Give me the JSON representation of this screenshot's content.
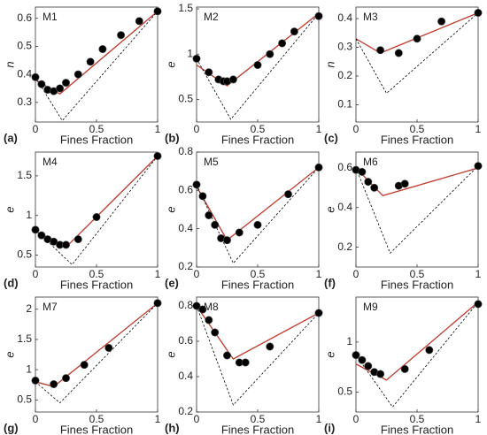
{
  "chart_data": [
    {
      "type": "scatter",
      "title": "M1",
      "panel_label": "(a)",
      "x_label": "Fines Fraction",
      "y_label": "n",
      "xlim": [
        0,
        1
      ],
      "xticks": [
        0,
        0.5,
        1
      ],
      "ylim": [
        0.23,
        0.64
      ],
      "yticks": [
        0.3,
        0.4,
        0.5,
        0.6
      ],
      "series": [
        {
          "kind": "points",
          "color": "#000000",
          "x": [
            0,
            0.05,
            0.1,
            0.15,
            0.2,
            0.25,
            0.35,
            0.45,
            0.55,
            0.7,
            0.85,
            1
          ],
          "values": [
            0.39,
            0.365,
            0.345,
            0.34,
            0.35,
            0.37,
            0.4,
            0.445,
            0.49,
            0.54,
            0.59,
            0.625
          ]
        },
        {
          "kind": "line",
          "color": "#c0392b",
          "x": [
            0,
            0.2,
            1
          ],
          "values": [
            0.38,
            0.33,
            0.625
          ]
        },
        {
          "kind": "dashed",
          "color": "#000000",
          "x": [
            0,
            0.22,
            1
          ],
          "values": [
            0.39,
            0.235,
            0.625
          ]
        }
      ]
    },
    {
      "type": "scatter",
      "title": "M2",
      "panel_label": "(b)",
      "x_label": "Fines Fraction",
      "y_label": "e",
      "xlim": [
        0,
        1
      ],
      "xticks": [
        0,
        0.5,
        1
      ],
      "ylim": [
        0.25,
        1.52
      ],
      "yticks": [
        0.5,
        1,
        1.5
      ],
      "series": [
        {
          "kind": "points",
          "color": "#000000",
          "x": [
            0,
            0.1,
            0.18,
            0.22,
            0.25,
            0.3,
            0.5,
            0.6,
            0.7,
            0.8,
            1
          ],
          "values": [
            0.95,
            0.8,
            0.72,
            0.7,
            0.7,
            0.72,
            0.88,
            1.0,
            1.12,
            1.25,
            1.42
          ]
        },
        {
          "kind": "line",
          "color": "#c0392b",
          "x": [
            0,
            0.25,
            1
          ],
          "values": [
            0.88,
            0.65,
            1.45
          ]
        },
        {
          "kind": "dashed",
          "color": "#000000",
          "x": [
            0,
            0.28,
            1
          ],
          "values": [
            0.95,
            0.28,
            1.45
          ]
        }
      ]
    },
    {
      "type": "scatter",
      "title": "M3",
      "panel_label": "(c)",
      "x_label": "Fines Fraction",
      "y_label": "n",
      "xlim": [
        0,
        1
      ],
      "xticks": [
        0,
        0.5,
        1
      ],
      "ylim": [
        0.04,
        0.44
      ],
      "yticks": [
        0.1,
        0.2,
        0.3,
        0.4
      ],
      "series": [
        {
          "kind": "points",
          "color": "#000000",
          "x": [
            0.2,
            0.35,
            0.5,
            0.7,
            1
          ],
          "values": [
            0.29,
            0.28,
            0.33,
            0.39,
            0.42
          ]
        },
        {
          "kind": "line",
          "color": "#c0392b",
          "x": [
            0,
            0.2,
            1
          ],
          "values": [
            0.33,
            0.28,
            0.42
          ]
        },
        {
          "kind": "dashed",
          "color": "#000000",
          "x": [
            0,
            0.25,
            1
          ],
          "values": [
            0.33,
            0.14,
            0.42
          ]
        }
      ]
    },
    {
      "type": "scatter",
      "title": "M4",
      "panel_label": "(d)",
      "x_label": "Fines Fraction",
      "y_label": "e",
      "xlim": [
        0,
        1
      ],
      "xticks": [
        0,
        0.5,
        1
      ],
      "ylim": [
        0.35,
        1.8
      ],
      "yticks": [
        0.5,
        1,
        1.5
      ],
      "series": [
        {
          "kind": "points",
          "color": "#000000",
          "x": [
            0,
            0.05,
            0.1,
            0.15,
            0.2,
            0.25,
            0.35,
            0.5,
            1
          ],
          "values": [
            0.82,
            0.75,
            0.7,
            0.67,
            0.63,
            0.63,
            0.7,
            0.98,
            1.75
          ]
        },
        {
          "kind": "line",
          "color": "#c0392b",
          "x": [
            0,
            0.25,
            1
          ],
          "values": [
            0.8,
            0.6,
            1.75
          ]
        },
        {
          "kind": "dashed",
          "color": "#000000",
          "x": [
            0,
            0.3,
            1
          ],
          "values": [
            0.82,
            0.38,
            1.75
          ]
        }
      ]
    },
    {
      "type": "scatter",
      "title": "M5",
      "panel_label": "(e)",
      "x_label": "Fines Fraction",
      "y_label": "e",
      "xlim": [
        0,
        1
      ],
      "xticks": [
        0,
        0.5,
        1
      ],
      "ylim": [
        0.2,
        0.8
      ],
      "yticks": [
        0.2,
        0.4,
        0.6,
        0.8
      ],
      "series": [
        {
          "kind": "points",
          "color": "#000000",
          "x": [
            0,
            0.05,
            0.1,
            0.15,
            0.2,
            0.25,
            0.35,
            0.5,
            0.75,
            1
          ],
          "values": [
            0.63,
            0.57,
            0.47,
            0.42,
            0.35,
            0.34,
            0.38,
            0.42,
            0.58,
            0.72
          ]
        },
        {
          "kind": "line",
          "color": "#c0392b",
          "x": [
            0,
            0.25,
            1
          ],
          "values": [
            0.62,
            0.34,
            0.72
          ]
        },
        {
          "kind": "dashed",
          "color": "#000000",
          "x": [
            0,
            0.3,
            1
          ],
          "values": [
            0.63,
            0.22,
            0.72
          ]
        }
      ]
    },
    {
      "type": "scatter",
      "title": "M6",
      "panel_label": "(f)",
      "x_label": "Fines Fraction",
      "y_label": "e",
      "xlim": [
        0,
        1
      ],
      "xticks": [
        0,
        0.5,
        1
      ],
      "ylim": [
        0.1,
        0.68
      ],
      "yticks": [
        0.2,
        0.4,
        0.6
      ],
      "series": [
        {
          "kind": "points",
          "color": "#000000",
          "x": [
            0,
            0.05,
            0.1,
            0.15,
            0.35,
            0.4,
            1
          ],
          "values": [
            0.59,
            0.58,
            0.53,
            0.5,
            0.51,
            0.52,
            0.61
          ]
        },
        {
          "kind": "line",
          "color": "#c0392b",
          "x": [
            0,
            0.22,
            1
          ],
          "values": [
            0.6,
            0.46,
            0.6
          ]
        },
        {
          "kind": "dashed",
          "color": "#000000",
          "x": [
            0,
            0.28,
            1
          ],
          "values": [
            0.6,
            0.17,
            0.61
          ]
        }
      ]
    },
    {
      "type": "scatter",
      "title": "M7",
      "panel_label": "(g)",
      "x_label": "Fines Fraction",
      "y_label": "e",
      "xlim": [
        0,
        1
      ],
      "xticks": [
        0,
        0.5,
        1
      ],
      "ylim": [
        0.3,
        2.2
      ],
      "yticks": [
        0.5,
        1,
        1.5,
        2
      ],
      "series": [
        {
          "kind": "points",
          "color": "#000000",
          "x": [
            0,
            0.15,
            0.25,
            0.4,
            0.6,
            1
          ],
          "values": [
            0.82,
            0.76,
            0.86,
            1.08,
            1.36,
            2.1
          ]
        },
        {
          "kind": "line",
          "color": "#c0392b",
          "x": [
            0,
            0.15,
            1
          ],
          "values": [
            0.8,
            0.72,
            2.1
          ]
        },
        {
          "kind": "dashed",
          "color": "#000000",
          "x": [
            0,
            0.2,
            1
          ],
          "values": [
            0.8,
            0.45,
            2.1
          ]
        }
      ]
    },
    {
      "type": "scatter",
      "title": "M8",
      "panel_label": "(h)",
      "x_label": "Fines Fraction",
      "y_label": "e",
      "xlim": [
        0,
        1
      ],
      "xticks": [
        0,
        0.5,
        1
      ],
      "ylim": [
        0.2,
        0.85
      ],
      "yticks": [
        0.2,
        0.4,
        0.6,
        0.8
      ],
      "series": [
        {
          "kind": "points",
          "color": "#000000",
          "x": [
            0,
            0.05,
            0.1,
            0.15,
            0.25,
            0.35,
            0.4,
            0.6,
            1
          ],
          "values": [
            0.8,
            0.78,
            0.72,
            0.65,
            0.52,
            0.48,
            0.48,
            0.57,
            0.76
          ]
        },
        {
          "kind": "line",
          "color": "#c0392b",
          "x": [
            0,
            0.3,
            1
          ],
          "values": [
            0.8,
            0.5,
            0.76
          ]
        },
        {
          "kind": "dashed",
          "color": "#000000",
          "x": [
            0,
            0.3,
            1
          ],
          "values": [
            0.8,
            0.24,
            0.76
          ]
        }
      ]
    },
    {
      "type": "scatter",
      "title": "M9",
      "panel_label": "(i)",
      "x_label": "Fines Fraction",
      "y_label": "e",
      "xlim": [
        0,
        1
      ],
      "xticks": [
        0,
        0.5,
        1
      ],
      "ylim": [
        0.3,
        1.45
      ],
      "yticks": [
        0.5,
        1
      ],
      "series": [
        {
          "kind": "points",
          "color": "#000000",
          "x": [
            0,
            0.05,
            0.1,
            0.15,
            0.2,
            0.4,
            0.6,
            1
          ],
          "values": [
            0.87,
            0.82,
            0.76,
            0.7,
            0.68,
            0.73,
            0.92,
            1.38
          ]
        },
        {
          "kind": "line",
          "color": "#c0392b",
          "x": [
            0,
            0.25,
            1
          ],
          "values": [
            0.78,
            0.62,
            1.4
          ]
        },
        {
          "kind": "dashed",
          "color": "#000000",
          "x": [
            0,
            0.3,
            1
          ],
          "values": [
            0.87,
            0.35,
            1.4
          ]
        }
      ]
    }
  ]
}
